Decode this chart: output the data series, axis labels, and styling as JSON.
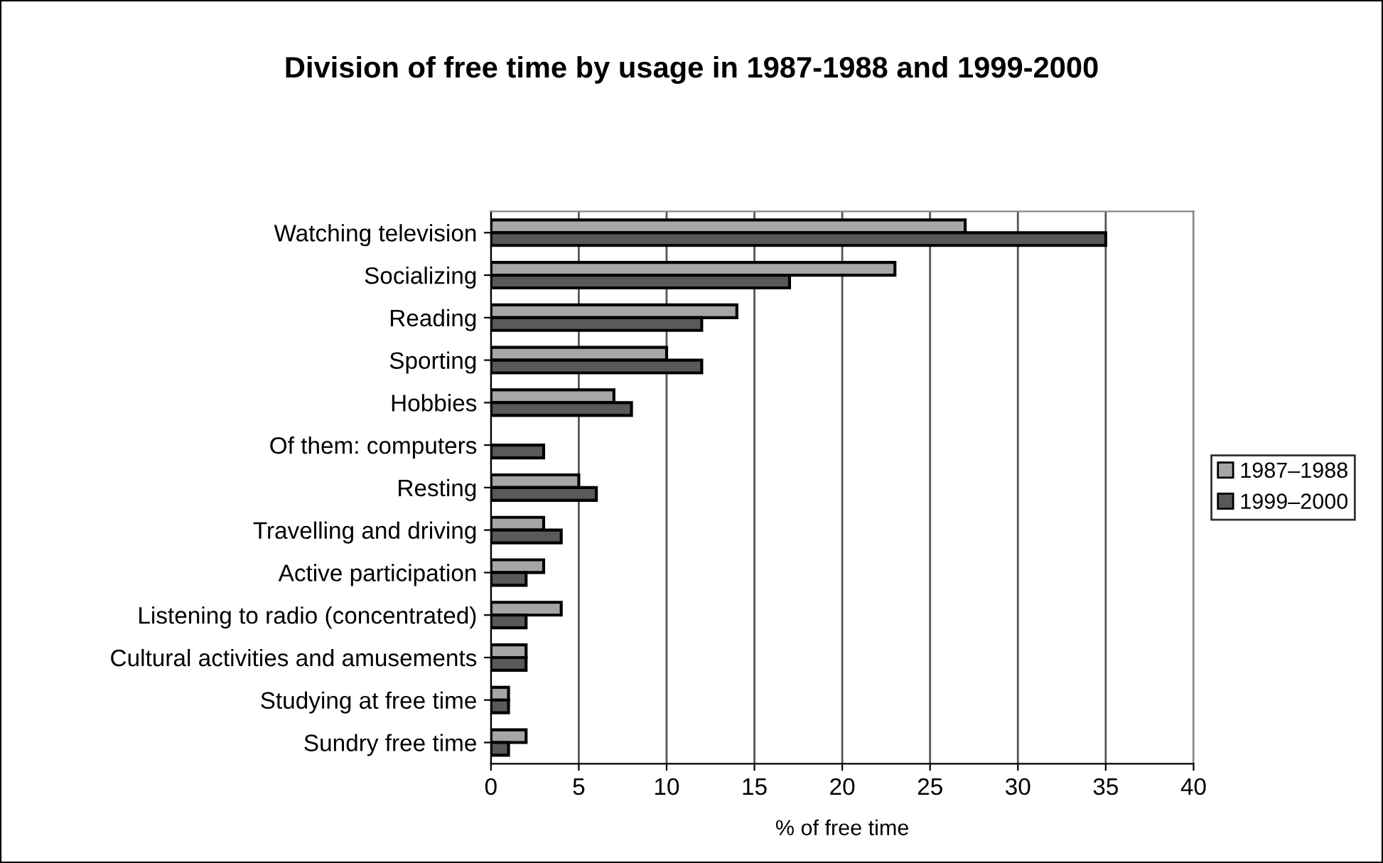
{
  "chart_data": {
    "type": "bar",
    "orientation": "horizontal",
    "title": "Division of free time by usage in 1987-1988 and 1999-2000",
    "xlabel": "% of free time",
    "categories": [
      "Watching television",
      "Socializing",
      "Reading",
      "Sporting",
      "Hobbies",
      "Of them: computers",
      "Resting",
      "Travelling and driving",
      "Active participation",
      "Listening to radio (concentrated)",
      "Cultural activities and amusements",
      "Studying at free time",
      "Sundry free time"
    ],
    "series": [
      {
        "name": "1987–1988",
        "color": "#a6a6a6",
        "values": [
          27,
          23,
          14,
          10,
          7,
          null,
          5,
          3,
          3,
          4,
          2,
          1,
          2
        ]
      },
      {
        "name": "1999–2000",
        "color": "#595959",
        "values": [
          35,
          17,
          12,
          12,
          8,
          3,
          6,
          4,
          2,
          2,
          2,
          1,
          1
        ]
      }
    ],
    "xlim": [
      0,
      40
    ],
    "xticks": [
      0,
      5,
      10,
      15,
      20,
      25,
      30,
      35,
      40
    ],
    "grid": "x",
    "legend": "right"
  }
}
